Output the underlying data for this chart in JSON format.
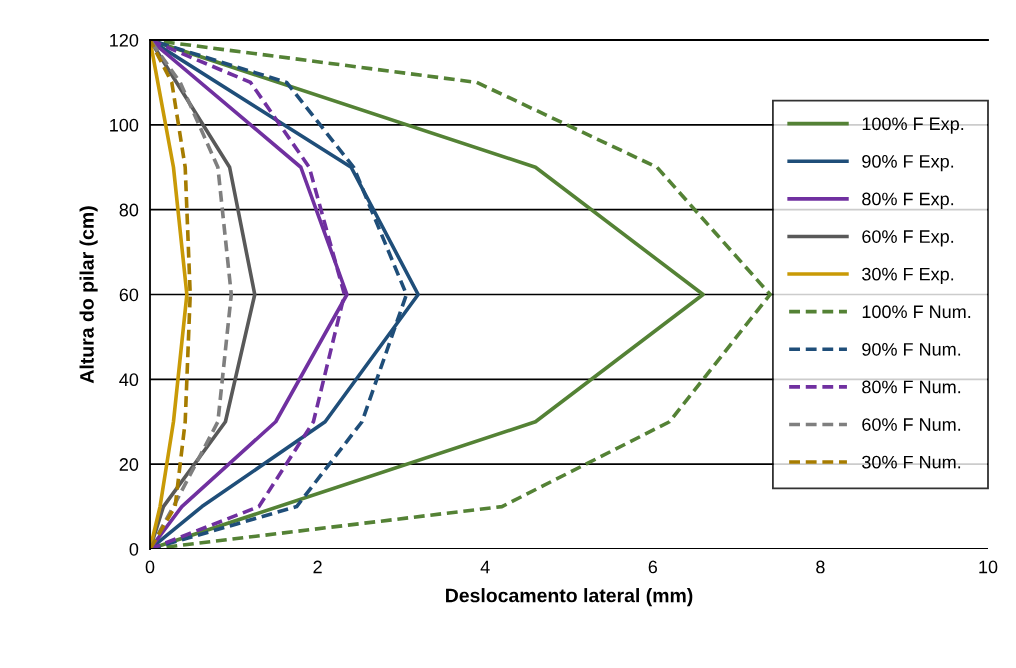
{
  "chart_data": {
    "type": "line",
    "xlabel": "Deslocamento lateral (mm)",
    "ylabel": "Altura do pilar (cm)",
    "xlim": [
      0,
      10
    ],
    "xticks": [
      0,
      2,
      4,
      6,
      8,
      10
    ],
    "ylim": [
      0,
      120
    ],
    "yticks": [
      0,
      20,
      40,
      60,
      80,
      100,
      120
    ],
    "grid": "y",
    "legend": "right",
    "marker": "none",
    "series": [
      {
        "name": "100% F Exp.",
        "color": "#548235",
        "line_style": "solid",
        "x": [
          0,
          4.6,
          6.6,
          4.6,
          0
        ],
        "values": [
          0,
          30,
          60,
          90,
          120
        ]
      },
      {
        "name": "90% F Exp.",
        "color": "#1f4e79",
        "line_style": "solid",
        "x": [
          0,
          0.62,
          2.09,
          3.2,
          2.4,
          0
        ],
        "values": [
          0,
          10,
          30,
          60,
          90,
          120
        ]
      },
      {
        "name": "80% F Exp.",
        "color": "#7030a0",
        "line_style": "solid",
        "x": [
          0,
          0.38,
          1.5,
          2.35,
          1.8,
          0
        ],
        "values": [
          0,
          10,
          30,
          60,
          90,
          120
        ]
      },
      {
        "name": "60% F Exp.",
        "color": "#595959",
        "line_style": "solid",
        "x": [
          0,
          0.16,
          0.9,
          1.25,
          0.95,
          0
        ],
        "values": [
          0,
          10,
          30,
          60,
          90,
          120
        ]
      },
      {
        "name": "30% F Exp.",
        "color": "#c99a06",
        "line_style": "solid",
        "x": [
          0,
          0.12,
          0.28,
          0.44,
          0.28,
          0
        ],
        "values": [
          0,
          10,
          30,
          60,
          90,
          120
        ]
      },
      {
        "name": "100% F Num.",
        "color": "#548235",
        "line_style": "dashed",
        "x": [
          0,
          4.2,
          6.2,
          7.4,
          6.05,
          3.9,
          0
        ],
        "values": [
          0,
          10,
          30,
          60,
          90,
          110,
          120
        ]
      },
      {
        "name": "90% F Num.",
        "color": "#1f4e79",
        "line_style": "dashed",
        "x": [
          0,
          1.75,
          2.53,
          3.06,
          2.43,
          1.63,
          0
        ],
        "values": [
          0,
          10,
          30,
          60,
          90,
          110,
          120
        ]
      },
      {
        "name": "80% F Num.",
        "color": "#7030a0",
        "line_style": "dashed",
        "x": [
          0,
          1.3,
          1.95,
          2.32,
          1.9,
          1.2,
          0
        ],
        "values": [
          0,
          10,
          30,
          60,
          90,
          110,
          120
        ]
      },
      {
        "name": "60% F Num.",
        "color": "#7f7f7f",
        "line_style": "dashed",
        "x": [
          0,
          0.28,
          0.81,
          0.97,
          0.81,
          0.36,
          0
        ],
        "values": [
          0,
          10,
          30,
          60,
          90,
          110,
          120
        ]
      },
      {
        "name": "30% F Num.",
        "color": "#a67c00",
        "line_style": "dashed",
        "x": [
          0,
          0.3,
          0.42,
          0.48,
          0.42,
          0.26,
          0
        ],
        "values": [
          0,
          10,
          30,
          60,
          90,
          110,
          120
        ]
      }
    ]
  }
}
